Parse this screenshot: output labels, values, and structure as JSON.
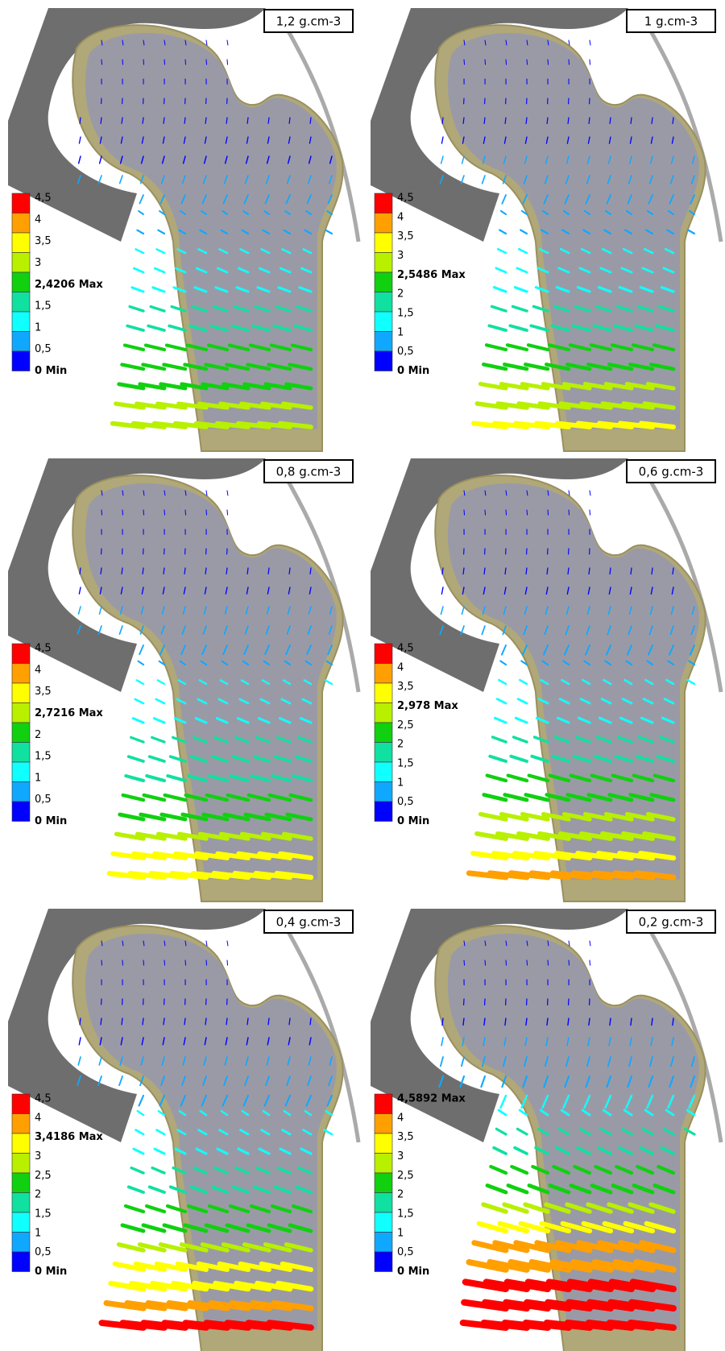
{
  "legend_colors": [
    "#ff0000",
    "#ffa000",
    "#ffff00",
    "#b8f000",
    "#10d010",
    "#10e0a0",
    "#10ffff",
    "#10a8ff",
    "#0000ff"
  ],
  "panels": [
    {
      "label": "1,2 g.cm-3",
      "legend": [
        "4,5",
        "4",
        "3,5",
        "3",
        "2,4206 Max",
        "1,5",
        "1",
        "0,5",
        "0 Min"
      ]
    },
    {
      "label": "1 g.cm-3",
      "legend": [
        "4,5",
        "4",
        "3,5",
        "3",
        "2,5486 Max",
        "2",
        "1,5",
        "1",
        "0,5",
        "0 Min"
      ]
    },
    {
      "label": "0,8 g.cm-3",
      "legend": [
        "4,5",
        "4",
        "3,5",
        "2,7216 Max",
        "2",
        "1,5",
        "1",
        "0,5",
        "0 Min"
      ]
    },
    {
      "label": "0,6 g.cm-3",
      "legend": [
        "4,5",
        "4",
        "3,5",
        "2,978 Max",
        "2,5",
        "2",
        "1,5",
        "1",
        "0,5",
        "0 Min"
      ]
    },
    {
      "label": "0,4 g.cm-3",
      "legend": [
        "4,5",
        "4",
        "3,4186 Max",
        "3",
        "2,5",
        "2",
        "1,5",
        "1",
        "0,5",
        "0 Min"
      ]
    },
    {
      "label": "0,2 g.cm-3",
      "legend": [
        "4,5892 Max",
        "4",
        "3,5",
        "3",
        "2,5",
        "2",
        "1,5",
        "1",
        "0,5",
        "0 Min"
      ]
    }
  ]
}
